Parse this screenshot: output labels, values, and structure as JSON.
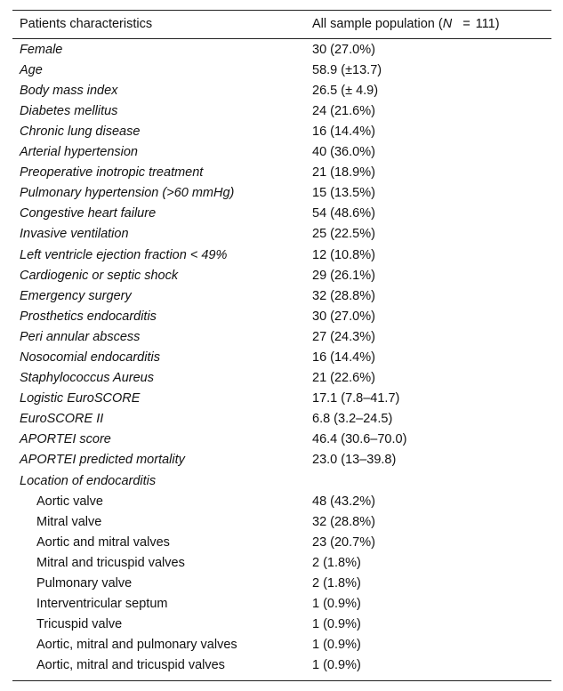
{
  "table": {
    "header": [
      "Patients characteristics",
      {
        "text": "All sample population (",
        "symbol": "N",
        "operator": "=",
        "count": "111)"
      }
    ],
    "rows": [
      [
        "Female",
        "30 (27.0%)"
      ],
      [
        "Age",
        "58.9 (±13.7)"
      ],
      [
        "Body mass index",
        "26.5 (± 4.9)"
      ],
      [
        "Diabetes mellitus",
        "24 (21.6%)"
      ],
      [
        "Chronic lung disease",
        "16 (14.4%)"
      ],
      [
        "Arterial hypertension",
        "40 (36.0%)"
      ],
      [
        "Preoperative inotropic treatment",
        "21 (18.9%)"
      ],
      [
        "Pulmonary hypertension (>60 mmHg)",
        "15 (13.5%)"
      ],
      [
        "Congestive heart failure",
        "54 (48.6%)"
      ],
      [
        "Invasive ventilation",
        "25 (22.5%)"
      ],
      [
        "Left ventricle ejection fraction < 49%",
        "12 (10.8%)"
      ],
      [
        "Cardiogenic or septic shock",
        "29 (26.1%)"
      ],
      [
        "Emergency surgery",
        "32 (28.8%)"
      ],
      [
        "Prosthetics endocarditis",
        "30 (27.0%)"
      ],
      [
        "Peri annular abscess",
        "27 (24.3%)"
      ],
      [
        "Nosocomial endocarditis",
        "16 (14.4%)"
      ],
      [
        "Staphylococcus Aureus",
        "21 (22.6%)"
      ],
      [
        "Logistic EuroSCORE",
        "17.1 (7.8–41.7)"
      ],
      [
        "EuroSCORE II",
        "6.8 (3.2–24.5)"
      ],
      [
        "APORTEI score",
        "46.4 (30.6–70.0)"
      ],
      [
        "APORTEI predicted mortality",
        "23.0 (13–39.8)"
      ]
    ],
    "section": {
      "label": "Location of endocarditis",
      "rows": [
        [
          "Aortic valve",
          "48 (43.2%)"
        ],
        [
          "Mitral valve",
          "32 (28.8%)"
        ],
        [
          "Aortic and mitral valves",
          "23 (20.7%)"
        ],
        [
          "Mitral and tricuspid valves",
          "2 (1.8%)"
        ],
        [
          "Pulmonary valve",
          "2 (1.8%)"
        ],
        [
          "Interventricular septum",
          "1 (0.9%)"
        ],
        [
          "Tricuspid valve",
          "1 (0.9%)"
        ],
        [
          "Aortic, mitral and pulmonary valves",
          "1 (0.9%)"
        ],
        [
          "Aortic, mitral and tricuspid valves",
          "1 (0.9%)"
        ]
      ]
    }
  }
}
